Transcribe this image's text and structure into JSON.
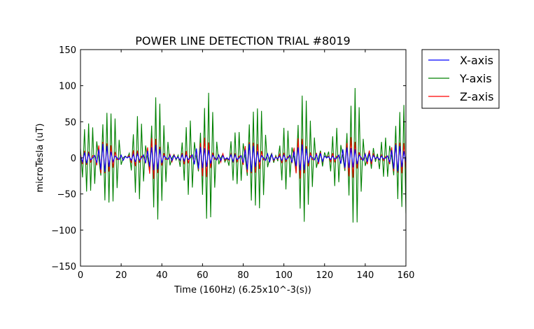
{
  "chart_data": {
    "type": "line",
    "title": "POWER LINE DETECTION TRIAL #8019",
    "xlabel": "Time (160Hz) (6.25x10^-3(s))",
    "ylabel": "microTesla (uT)",
    "xlim": [
      0,
      160
    ],
    "ylim": [
      -150,
      150
    ],
    "xticks": [
      0,
      20,
      40,
      60,
      80,
      100,
      120,
      140,
      160
    ],
    "yticks": [
      150,
      100,
      50,
      0,
      -50,
      -100,
      -150
    ],
    "ytick_labels": [
      "150",
      "100",
      "50",
      "0",
      "−50",
      "−100",
      "−150"
    ],
    "grid": false,
    "legend_position": "outside-top-right",
    "description_signal": {
      "samples": 160,
      "carrier_cycles_per_sample": 0.4583,
      "envelope_period_samples": 24.5
    },
    "series": [
      {
        "name": "X-axis",
        "color": "#0000ff",
        "peak_amplitude": 20
      },
      {
        "name": "Y-axis",
        "color": "#008000",
        "peak_amplitude": 100
      },
      {
        "name": "Z-axis",
        "color": "#ff0000",
        "peak_amplitude": 30
      }
    ]
  }
}
